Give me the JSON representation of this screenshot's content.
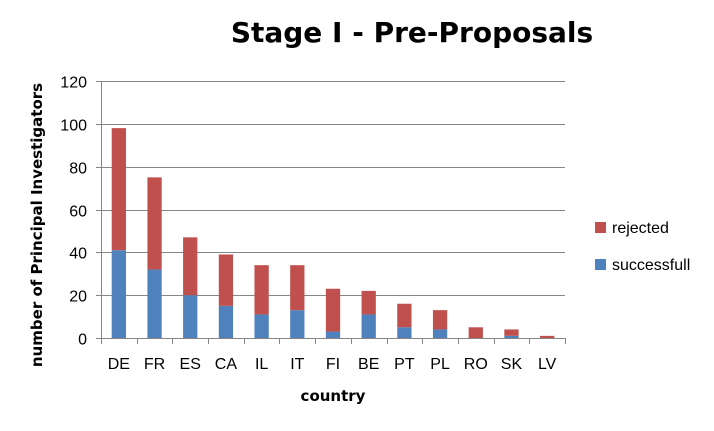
{
  "chart_data": {
    "type": "bar",
    "stacked": true,
    "title": "Stage I - Pre-Proposals",
    "xlabel": "country",
    "ylabel": "number of Principal Investigators",
    "categories": [
      "DE",
      "FR",
      "ES",
      "CA",
      "IL",
      "IT",
      "FI",
      "BE",
      "PT",
      "PL",
      "RO",
      "SK",
      "LV"
    ],
    "series": [
      {
        "name": "successfull",
        "color": "#4f81bd",
        "values": [
          41,
          32,
          20,
          15,
          11,
          13,
          3,
          11,
          5,
          4,
          0,
          1,
          0
        ]
      },
      {
        "name": "rejected",
        "color": "#c0504d",
        "values": [
          57,
          43,
          27,
          24,
          23,
          21,
          20,
          11,
          11,
          9,
          5,
          3,
          1
        ]
      }
    ],
    "ylim": [
      0,
      120
    ],
    "yticks": [
      0,
      20,
      40,
      60,
      80,
      100,
      120
    ],
    "grid": true,
    "legend": "right"
  }
}
